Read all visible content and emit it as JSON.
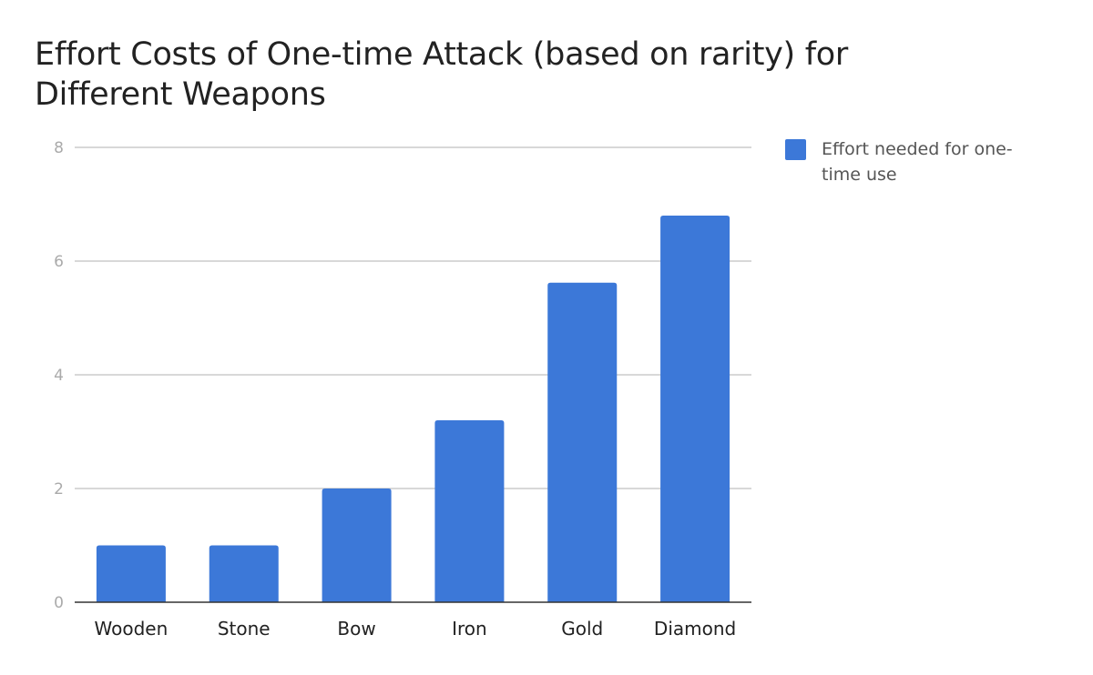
{
  "chart_data": {
    "type": "bar",
    "title": "Effort Costs of One-time Attack (based on rarity) for Different Weapons",
    "xlabel": "",
    "ylabel": "",
    "categories": [
      "Wooden",
      "Stone",
      "Bow",
      "Iron",
      "Gold",
      "Diamond"
    ],
    "series": [
      {
        "name": "Effort needed for one-time use",
        "values": [
          1,
          1,
          2,
          3.2,
          5.62,
          6.8
        ]
      }
    ],
    "ylim": [
      0,
      8
    ],
    "yticks": [
      "0",
      "2",
      "4",
      "6",
      "8"
    ],
    "grid": true,
    "legend_position": "right",
    "bar_color": "#3c78d8"
  }
}
